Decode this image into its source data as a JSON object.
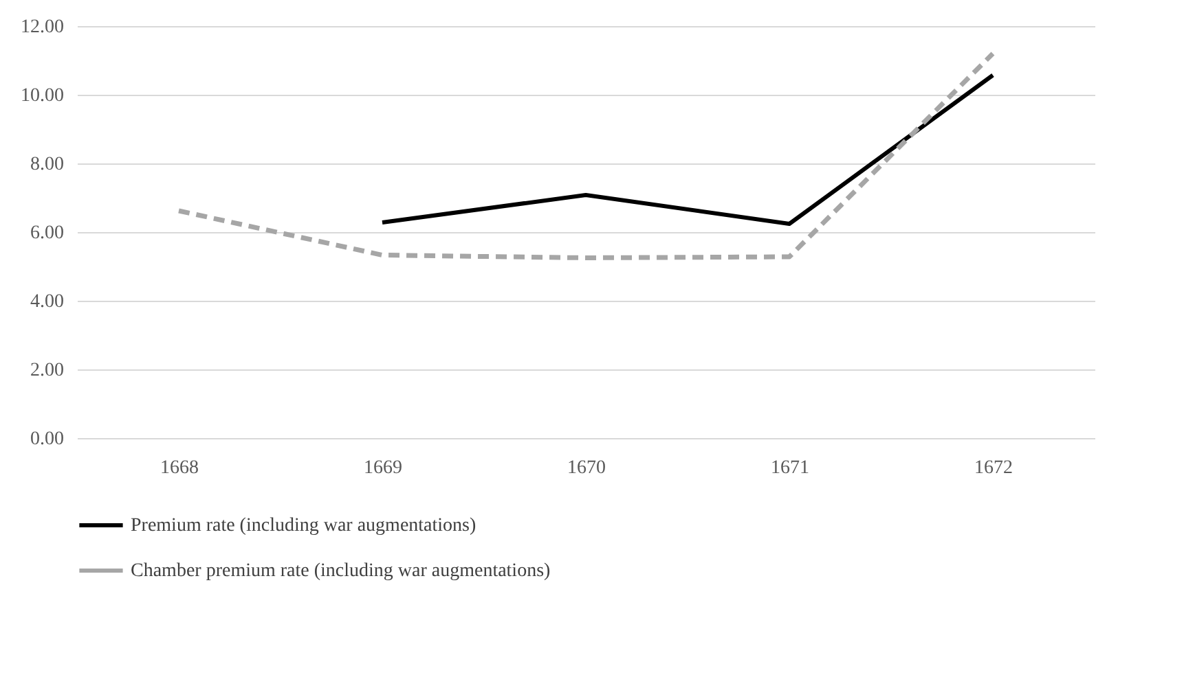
{
  "chart_data": {
    "type": "line",
    "categories": [
      "1668",
      "1669",
      "1670",
      "1671",
      "1672"
    ],
    "series": [
      {
        "name": "Premium rate (including war augmentations)",
        "color": "#000000",
        "line_style": "solid",
        "values": [
          null,
          6.28,
          7.08,
          6.24,
          10.57
        ]
      },
      {
        "name": "Chamber premium rate (including war augmentations)",
        "color": "#a6a6a6",
        "line_style": "dashed",
        "values": [
          6.62,
          5.33,
          5.25,
          5.28,
          11.2
        ]
      }
    ],
    "ylim": [
      0,
      12
    ],
    "yticks": [
      {
        "value": 0,
        "label": "0.00"
      },
      {
        "value": 2,
        "label": "2.00"
      },
      {
        "value": 4,
        "label": "4.00"
      },
      {
        "value": 6,
        "label": "6.00"
      },
      {
        "value": 8,
        "label": "8.00"
      },
      {
        "value": 10,
        "label": "10.00"
      },
      {
        "value": 12,
        "label": "12.00"
      }
    ],
    "grid": "y",
    "legend": "bottom",
    "marker": "none"
  }
}
